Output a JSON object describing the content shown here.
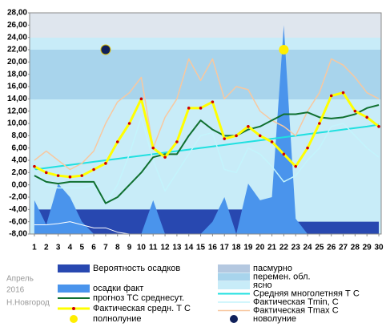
{
  "chart_data": {
    "type": "line",
    "place": [
      "Апрель",
      "2016",
      "Н.Новгород"
    ],
    "x": [
      1,
      2,
      3,
      4,
      5,
      6,
      7,
      8,
      9,
      10,
      11,
      12,
      13,
      14,
      15,
      16,
      17,
      18,
      19,
      20,
      21,
      22,
      23,
      24,
      25,
      26,
      27,
      28,
      29,
      30
    ],
    "xlim": [
      0.6,
      30.2
    ],
    "ylim": [
      -8,
      28
    ],
    "yticks": [
      {
        "value": -8,
        "label": "-8,00"
      },
      {
        "value": -6,
        "label": "-6,00"
      },
      {
        "value": -4,
        "label": "-4,00"
      },
      {
        "value": -2,
        "label": "-2,00"
      },
      {
        "value": 0,
        "label": "0,00"
      },
      {
        "value": 2,
        "label": "2,00"
      },
      {
        "value": 4,
        "label": "4,00"
      },
      {
        "value": 6,
        "label": "6,00"
      },
      {
        "value": 8,
        "label": "8,00"
      },
      {
        "value": 10,
        "label": "10,00"
      },
      {
        "value": 12,
        "label": "12,00"
      },
      {
        "value": 14,
        "label": "14,00"
      },
      {
        "value": 16,
        "label": "16,00"
      },
      {
        "value": 18,
        "label": "18,00"
      },
      {
        "value": 20,
        "label": "20,00"
      },
      {
        "value": 22,
        "label": "22,00"
      },
      {
        "value": 24,
        "label": "24,00"
      },
      {
        "value": 26,
        "label": "26,00"
      },
      {
        "value": 28,
        "label": "28,00"
      }
    ],
    "bands": [
      {
        "name": "пасмурно",
        "color": "#b4c8e0"
      },
      {
        "name": "перемен. обл.",
        "color": "#a8d4ec"
      },
      {
        "name": "ясно",
        "color": "#c8ecf8"
      }
    ],
    "series": [
      {
        "name": "Вероятность осадков",
        "kind": "area",
        "color": "#2848b0",
        "values": [
          -4,
          -4,
          -4,
          -4,
          -4,
          -4,
          -4,
          -4,
          -4,
          -4,
          -4,
          -4,
          -4,
          -4,
          -4,
          -4,
          -4,
          -4,
          -4,
          -4,
          -4,
          -4,
          -6,
          -6,
          -6,
          -6,
          -6,
          -6,
          -6,
          -6
        ]
      },
      {
        "name": "осадки факт",
        "kind": "area",
        "color": "#4a94ec",
        "values": [
          -2.5,
          -6.5,
          0.2,
          -2,
          -6,
          -8,
          -8,
          -8,
          -8,
          -8,
          -2.5,
          -8,
          -8,
          -8,
          -8,
          -6,
          -2,
          -8,
          0.2,
          -2.5,
          -2,
          26,
          -5.5,
          -8,
          -8,
          -8,
          -8,
          -8,
          -8,
          -8
        ]
      },
      {
        "kind": "line",
        "color": "#ffffff",
        "width": 1,
        "values": [
          -6.5,
          -6.5,
          -6.3,
          -6,
          -6.5,
          -7,
          -7,
          -7.7,
          -8,
          null,
          null,
          null,
          null,
          null,
          null,
          null,
          null,
          null,
          null,
          null,
          null,
          null,
          null,
          null,
          null,
          null,
          null,
          null,
          null,
          null
        ]
      },
      {
        "name": "Средняя многолетняя Т С",
        "kind": "line",
        "color": "#20e0e0",
        "width": 2,
        "values": [
          2.5,
          2.75,
          3,
          3.25,
          3.5,
          3.75,
          4,
          4.25,
          4.5,
          4.75,
          5,
          5.25,
          5.5,
          5.75,
          6,
          6.25,
          6.5,
          6.75,
          7,
          7.25,
          7.5,
          7.75,
          8,
          8.25,
          8.5,
          8.75,
          9,
          9.25,
          9.5,
          9.8
        ]
      },
      {
        "name": "Фактическая Tmin, C",
        "kind": "line",
        "color": "#c4f4fc",
        "width": 1.5,
        "values": [
          2.5,
          0,
          -0.5,
          -0.5,
          -0.5,
          0,
          -3,
          0,
          5,
          11,
          4,
          -1,
          2,
          5,
          8,
          8.5,
          2.5,
          2,
          6,
          5,
          3,
          0.5,
          1.5,
          4,
          6,
          9.5,
          10,
          8,
          6,
          4.5
        ]
      },
      {
        "name": "Фактическая Tmax C",
        "kind": "line",
        "color": "#f8c8a0",
        "width": 1.5,
        "values": [
          4,
          5.5,
          4,
          2.5,
          3.5,
          5.5,
          10,
          13.5,
          15,
          17.5,
          6,
          11,
          14,
          20.5,
          17,
          20.5,
          14,
          16,
          15.5,
          12,
          10.5,
          9.5,
          8,
          12,
          15,
          20.5,
          19.5,
          17.5,
          15,
          14
        ]
      },
      {
        "name": "прогноз ТС среднесут.",
        "kind": "line",
        "color": "#107030",
        "width": 2,
        "values": [
          1.5,
          0.5,
          0.2,
          0.5,
          0.5,
          0.5,
          -3,
          -2,
          0,
          2,
          4.5,
          5,
          5,
          8,
          10.5,
          9,
          8,
          8,
          9,
          9.5,
          10.5,
          11.5,
          11.5,
          11.8,
          11,
          10.8,
          11,
          11.5,
          12.5,
          13
        ]
      },
      {
        "name": "Фактическая средн. Т С",
        "kind": "line",
        "color": "#ffff00",
        "width": 3,
        "marker": "#d00000",
        "values": [
          3,
          2,
          1.5,
          1.3,
          1.5,
          2.5,
          3.5,
          7,
          10,
          14,
          6,
          4.5,
          7,
          12.5,
          12.5,
          13.5,
          7.5,
          8,
          9.5,
          8,
          7,
          5,
          3,
          6,
          10,
          14.5,
          15,
          12,
          11,
          9.5
        ]
      },
      {
        "name": "полнолуние",
        "kind": "point",
        "color": "#ffee00",
        "x": [
          22
        ],
        "values": [
          22
        ]
      },
      {
        "name": "новолуние",
        "kind": "point",
        "color": "#10205a",
        "x": [
          7
        ],
        "values": [
          22
        ]
      }
    ]
  }
}
